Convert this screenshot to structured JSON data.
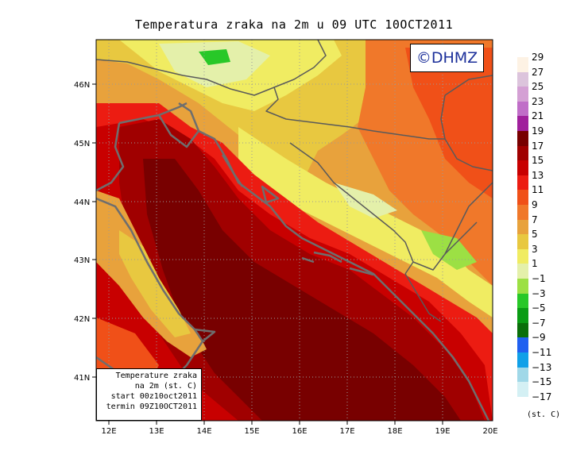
{
  "title": "Temperatura zraka na 2m u 09 UTC 10OCT2011",
  "logo": "©DHMZ",
  "infobox": {
    "line1": "Temperature zraka",
    "line2": "na 2m (st. C)",
    "line3": "start 00z10oct2011",
    "line4": "termin 09Z10OCT2011"
  },
  "axes": {
    "lat_labels": [
      "46N",
      "45N",
      "44N",
      "43N",
      "42N",
      "41N"
    ],
    "lon_labels": [
      "12E",
      "13E",
      "14E",
      "15E",
      "16E",
      "17E",
      "18E",
      "19E",
      "20E"
    ]
  },
  "legend": {
    "units": "(st. C)",
    "items": [
      {
        "label": "29",
        "color": "#fdf2e4"
      },
      {
        "label": "27",
        "color": "#dcc4dc"
      },
      {
        "label": "25",
        "color": "#d4a0d4"
      },
      {
        "label": "23",
        "color": "#c06ec8"
      },
      {
        "label": "21",
        "color": "#a0209c"
      },
      {
        "label": "19",
        "color": "#780000"
      },
      {
        "label": "17",
        "color": "#a00000"
      },
      {
        "label": "15",
        "color": "#c80000"
      },
      {
        "label": "13",
        "color": "#ec1c12"
      },
      {
        "label": "11",
        "color": "#f05018"
      },
      {
        "label": "9",
        "color": "#f0782a"
      },
      {
        "label": "7",
        "color": "#e8a23c"
      },
      {
        "label": "5",
        "color": "#e8c840"
      },
      {
        "label": "3",
        "color": "#f0ec62"
      },
      {
        "label": "1",
        "color": "#e4f0aa"
      },
      {
        "label": "−1",
        "color": "#9ce044"
      },
      {
        "label": "−3",
        "color": "#28c828"
      },
      {
        "label": "−5",
        "color": "#0a9c14"
      },
      {
        "label": "−7",
        "color": "#0a6e0a"
      },
      {
        "label": "−9",
        "color": "#2060f0"
      },
      {
        "label": "−11",
        "color": "#10a0e8"
      },
      {
        "label": "−13",
        "color": "#a0d8e8"
      },
      {
        "label": "−15",
        "color": "#d4f0f4"
      },
      {
        "label": "−17",
        "color": ""
      }
    ]
  }
}
